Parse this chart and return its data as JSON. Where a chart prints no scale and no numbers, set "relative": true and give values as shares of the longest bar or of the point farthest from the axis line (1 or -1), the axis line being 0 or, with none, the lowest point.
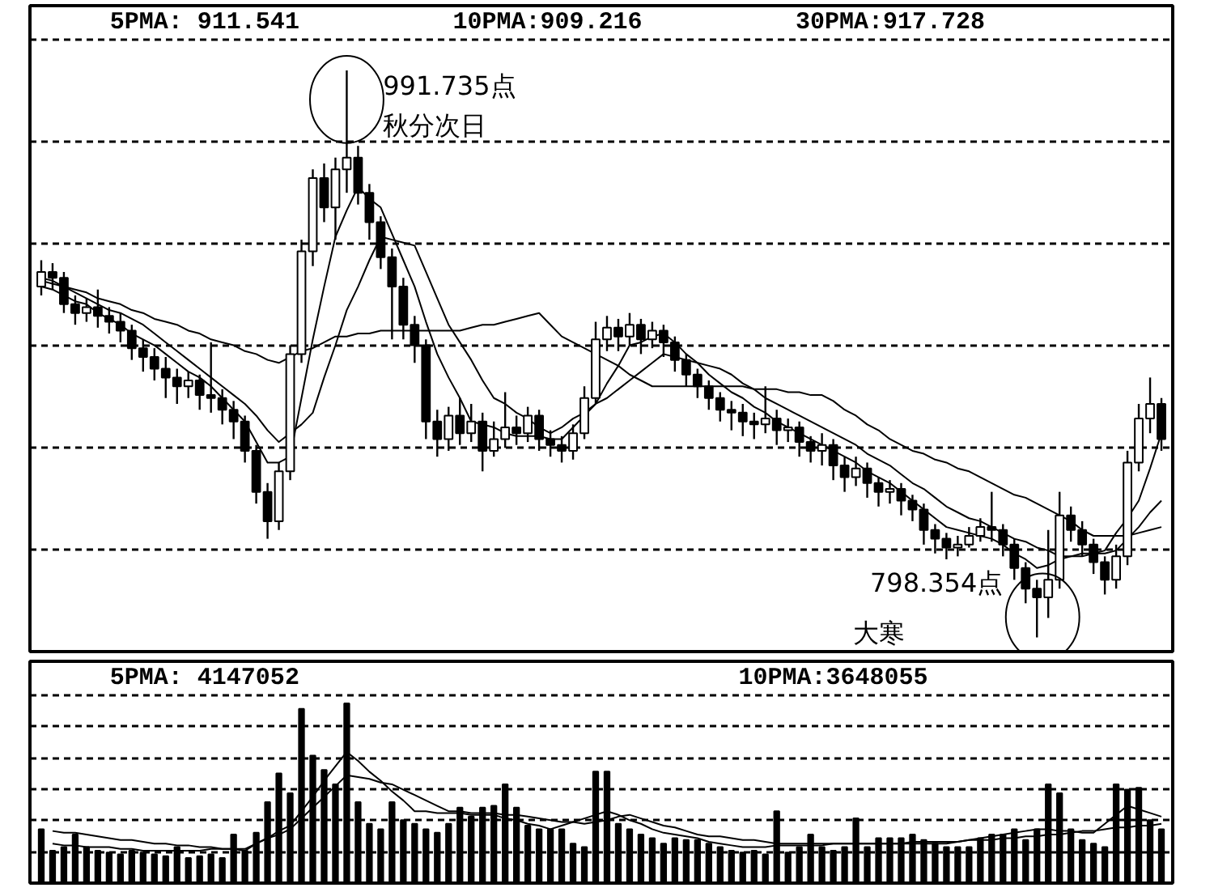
{
  "chart_data": [
    {
      "type": "candlestick",
      "color": "#000000",
      "grid": "y",
      "categories": [
        null,
        null,
        null,
        null,
        null,
        null,
        null,
        null,
        null,
        null,
        null,
        null,
        null,
        null,
        null,
        null,
        null,
        null,
        null,
        null,
        null,
        null,
        null,
        null,
        null,
        null,
        null,
        null,
        null,
        null,
        null,
        null,
        null,
        null,
        null,
        null,
        null,
        null,
        null,
        null,
        null,
        null,
        null,
        null,
        null,
        null,
        null,
        null,
        null,
        null,
        null,
        null,
        null,
        null,
        null,
        null,
        null,
        null,
        null,
        null,
        null,
        null,
        null,
        null,
        null,
        null,
        null,
        null,
        null,
        null,
        null,
        null,
        null,
        null,
        null,
        null,
        null,
        null,
        null,
        null,
        null,
        null,
        null,
        null,
        null,
        null,
        null,
        null,
        null,
        null,
        null,
        null,
        null,
        null,
        null,
        null,
        null,
        null,
        null,
        null
      ],
      "ohlc": [
        [
          918,
          927,
          915,
          923
        ],
        [
          923,
          926,
          917,
          921
        ],
        [
          921,
          923,
          909,
          912
        ],
        [
          912,
          915,
          905,
          909
        ],
        [
          909,
          914,
          906,
          911
        ],
        [
          911,
          917,
          904,
          908
        ],
        [
          908,
          911,
          902,
          906
        ],
        [
          906,
          909,
          899,
          903
        ],
        [
          903,
          905,
          893,
          897
        ],
        [
          897,
          900,
          889,
          894
        ],
        [
          894,
          897,
          886,
          890
        ],
        [
          890,
          894,
          880,
          887
        ],
        [
          887,
          890,
          878,
          884
        ],
        [
          884,
          889,
          880,
          886
        ],
        [
          886,
          888,
          876,
          881
        ],
        [
          881,
          899,
          875,
          880
        ],
        [
          880,
          883,
          871,
          876
        ],
        [
          876,
          879,
          866,
          872
        ],
        [
          872,
          874,
          858,
          862
        ],
        [
          862,
          864,
          844,
          848
        ],
        [
          848,
          851,
          832,
          838
        ],
        [
          838,
          858,
          835,
          855
        ],
        [
          855,
          898,
          852,
          895
        ],
        [
          895,
          934,
          892,
          930
        ],
        [
          930,
          958,
          925,
          955
        ],
        [
          955,
          960,
          940,
          945
        ],
        [
          945,
          962,
          934,
          958
        ],
        [
          958,
          991.735,
          950,
          962
        ],
        [
          962,
          966,
          946,
          950
        ],
        [
          950,
          953,
          934,
          940
        ],
        [
          940,
          942,
          924,
          928
        ],
        [
          928,
          931,
          900,
          918
        ],
        [
          918,
          921,
          900,
          905
        ],
        [
          905,
          908,
          892,
          898
        ],
        [
          898,
          900,
          866,
          872
        ],
        [
          872,
          876,
          860,
          866
        ],
        [
          866,
          877,
          862,
          874
        ],
        [
          874,
          880,
          864,
          868
        ],
        [
          868,
          878,
          865,
          872
        ],
        [
          872,
          875,
          855,
          862
        ],
        [
          862,
          872,
          860,
          866
        ],
        [
          866,
          882,
          863,
          870
        ],
        [
          870,
          874,
          864,
          868
        ],
        [
          868,
          877,
          865,
          874
        ],
        [
          874,
          876,
          862,
          866
        ],
        [
          866,
          869,
          860,
          864
        ],
        [
          864,
          867,
          858,
          862
        ],
        [
          862,
          871,
          859,
          868
        ],
        [
          868,
          884,
          866,
          880
        ],
        [
          880,
          906,
          878,
          900
        ],
        [
          900,
          908,
          896,
          904
        ],
        [
          904,
          907,
          896,
          901
        ],
        [
          901,
          909,
          898,
          905
        ],
        [
          905,
          907,
          895,
          900
        ],
        [
          900,
          906,
          897,
          903
        ],
        [
          903,
          905,
          894,
          899
        ],
        [
          899,
          901,
          889,
          893
        ],
        [
          893,
          895,
          884,
          888
        ],
        [
          888,
          890,
          880,
          884
        ],
        [
          884,
          886,
          876,
          880
        ],
        [
          880,
          882,
          872,
          876
        ],
        [
          876,
          879,
          869,
          875
        ],
        [
          875,
          878,
          867,
          872
        ],
        [
          872,
          875,
          866,
          871
        ],
        [
          871,
          884,
          868,
          873
        ],
        [
          873,
          876,
          864,
          869
        ],
        [
          869,
          873,
          865,
          870
        ],
        [
          870,
          872,
          860,
          865
        ],
        [
          865,
          867,
          858,
          862
        ],
        [
          862,
          868,
          857,
          864
        ],
        [
          864,
          866,
          852,
          857
        ],
        [
          857,
          860,
          848,
          853
        ],
        [
          853,
          860,
          850,
          856
        ],
        [
          856,
          858,
          846,
          851
        ],
        [
          851,
          853,
          843,
          848
        ],
        [
          848,
          852,
          844,
          849
        ],
        [
          849,
          851,
          840,
          845
        ],
        [
          845,
          847,
          838,
          842
        ],
        [
          842,
          844,
          830,
          835
        ],
        [
          835,
          837,
          827,
          832
        ],
        [
          832,
          834,
          825,
          829
        ],
        [
          829,
          833,
          826,
          830
        ],
        [
          830,
          836,
          829,
          833
        ],
        [
          833,
          839,
          831,
          836
        ],
        [
          836,
          848,
          831,
          835
        ],
        [
          835,
          837,
          826,
          830
        ],
        [
          830,
          832,
          818,
          822
        ],
        [
          822,
          824,
          810,
          815
        ],
        [
          815,
          818,
          798.354,
          812
        ],
        [
          812,
          835,
          805,
          818
        ],
        [
          818,
          848,
          815,
          840
        ],
        [
          840,
          843,
          831,
          835
        ],
        [
          835,
          838,
          826,
          830
        ],
        [
          830,
          832,
          820,
          824
        ],
        [
          824,
          826,
          813,
          818
        ],
        [
          818,
          830,
          815,
          826
        ],
        [
          826,
          862,
          823,
          858
        ],
        [
          858,
          878,
          855,
          873
        ],
        [
          873,
          887,
          868,
          878
        ],
        [
          878,
          880,
          862,
          866
        ]
      ],
      "series": [
        {
          "type": "line",
          "color": "#000000",
          "values": [
            918,
            917,
            915,
            913,
            912,
            909,
            907,
            905,
            902,
            900,
            898,
            895,
            892,
            889,
            887,
            884,
            880,
            876,
            872,
            865,
            858,
            858,
            860,
            880,
            900,
            918,
            935,
            944,
            952,
            948,
            945,
            936,
            927,
            918,
            906,
            895,
            887,
            880,
            872,
            871,
            870,
            868,
            867,
            867,
            867,
            866,
            866,
            870,
            874,
            878,
            885,
            891,
            898,
            899,
            901,
            902,
            899,
            895,
            892,
            888,
            885,
            882,
            880,
            877,
            875,
            872,
            870,
            868,
            866,
            864,
            862,
            860,
            858,
            855,
            853,
            851,
            848,
            845,
            842,
            839,
            836,
            835,
            834,
            833,
            832,
            830,
            827,
            825,
            822,
            823,
            825,
            826,
            827,
            827,
            828,
            834,
            839,
            845,
            856,
            868
          ]
        },
        {
          "type": "line",
          "color": "#000000",
          "values": [
            920,
            919,
            918,
            916,
            914,
            912,
            910,
            909,
            907,
            905,
            902,
            899,
            896,
            893,
            890,
            887,
            884,
            881,
            878,
            874,
            869,
            865,
            868,
            871,
            875,
            887,
            898,
            910,
            918,
            927,
            935,
            934,
            933,
            932,
            923,
            914,
            905,
            899,
            893,
            886,
            880,
            878,
            875,
            873,
            870,
            868,
            870,
            873,
            875,
            878,
            880,
            883,
            886,
            889,
            892,
            895,
            894,
            893,
            892,
            891,
            890,
            888,
            885,
            883,
            880,
            878,
            876,
            874,
            872,
            870,
            868,
            866,
            864,
            861,
            859,
            857,
            854,
            851,
            849,
            846,
            843,
            841,
            839,
            838,
            836,
            834,
            832,
            831,
            829,
            828,
            826,
            826,
            826,
            827,
            827,
            828,
            832,
            836,
            841,
            845
          ]
        },
        {
          "type": "line",
          "color": "#000000",
          "values": [
            921,
            920,
            918,
            917,
            916,
            914,
            913,
            912,
            910,
            909,
            907,
            906,
            905,
            903,
            902,
            900,
            899,
            898,
            896,
            895,
            893,
            892,
            894,
            896,
            897,
            899,
            901,
            901,
            902,
            902,
            903,
            903,
            903,
            903,
            903,
            903,
            903,
            903,
            904,
            905,
            905,
            906,
            907,
            908,
            909,
            905,
            901,
            899,
            897,
            895,
            893,
            891,
            888,
            886,
            884,
            884,
            884,
            884,
            884,
            884,
            884,
            884,
            884,
            883,
            883,
            883,
            882,
            882,
            881,
            881,
            879,
            876,
            874,
            871,
            869,
            866,
            864,
            862,
            861,
            859,
            858,
            856,
            855,
            853,
            851,
            849,
            847,
            846,
            844,
            842,
            840,
            838,
            835,
            833,
            833,
            833,
            833,
            834,
            835,
            836
          ]
        }
      ],
      "annotations": [
        "5PMA: 911.541",
        "10PMA:909.216",
        "30PMA:917.728",
        "991.735点",
        "秋分次日",
        "798.354点",
        "大寒"
      ]
    },
    {
      "type": "bar",
      "relative": true,
      "grid": "y",
      "categories": [
        null,
        null,
        null,
        null,
        null,
        null,
        null,
        null,
        null,
        null,
        null,
        null,
        null,
        null,
        null,
        null,
        null,
        null,
        null,
        null,
        null,
        null,
        null,
        null,
        null,
        null,
        null,
        null,
        null,
        null,
        null,
        null,
        null,
        null,
        null,
        null,
        null,
        null,
        null,
        null,
        null,
        null,
        null,
        null,
        null,
        null,
        null,
        null,
        null,
        null,
        null,
        null,
        null,
        null,
        null,
        null,
        null,
        null,
        null,
        null,
        null,
        null,
        null,
        null,
        null,
        null,
        null,
        null,
        null,
        null,
        null,
        null,
        null,
        null,
        null,
        null,
        null,
        null,
        null,
        null,
        null,
        null,
        null,
        null,
        null,
        null,
        null,
        null,
        null,
        null,
        null,
        null,
        null,
        null,
        null,
        null,
        null,
        null,
        null,
        null
      ],
      "series": [
        {
          "type": "bar",
          "color": "#000000",
          "values": [
            0.3,
            0.18,
            0.2,
            0.27,
            0.2,
            0.18,
            0.17,
            0.16,
            0.18,
            0.17,
            0.16,
            0.15,
            0.2,
            0.14,
            0.15,
            0.16,
            0.14,
            0.27,
            0.18,
            0.28,
            0.45,
            0.61,
            0.5,
            0.97,
            0.71,
            0.63,
            0.55,
            1,
            0.45,
            0.33,
            0.3,
            0.45,
            0.35,
            0.33,
            0.3,
            0.28,
            0.33,
            0.42,
            0.37,
            0.42,
            0.43,
            0.55,
            0.42,
            0.32,
            0.3,
            0.3,
            0.3,
            0.22,
            0.2,
            0.62,
            0.62,
            0.33,
            0.3,
            0.27,
            0.25,
            0.22,
            0.25,
            0.24,
            0.24,
            0.22,
            0.2,
            0.18,
            0.17,
            0.18,
            0.16,
            0.4,
            0.17,
            0.2,
            0.27,
            0.2,
            0.18,
            0.2,
            0.36,
            0.2,
            0.25,
            0.25,
            0.25,
            0.27,
            0.24,
            0.22,
            0.2,
            0.2,
            0.2,
            0.25,
            0.27,
            0.27,
            0.3,
            0.24,
            0.3,
            0.55,
            0.5,
            0.3,
            0.24,
            0.22,
            0.2,
            0.55,
            0.52,
            0.53,
            0.35,
            0.3
          ]
        },
        {
          "type": "line",
          "color": "#000000",
          "values": [
            null,
            0.29,
            0.28,
            0.28,
            0.27,
            0.26,
            0.25,
            0.24,
            0.24,
            0.23,
            0.22,
            0.22,
            0.21,
            0.21,
            0.2,
            0.2,
            0.19,
            0.19,
            0.18,
            0.22,
            0.25,
            0.29,
            0.32,
            0.4,
            0.48,
            0.57,
            0.65,
            0.73,
            0.68,
            0.62,
            0.57,
            0.51,
            0.46,
            0.4,
            0.4,
            0.39,
            0.39,
            0.39,
            0.38,
            0.38,
            0.38,
            0.36,
            0.35,
            0.33,
            0.32,
            0.3,
            0.32,
            0.34,
            0.36,
            0.38,
            0.4,
            0.38,
            0.35,
            0.33,
            0.3,
            0.28,
            0.27,
            0.26,
            0.25,
            0.23,
            0.22,
            0.21,
            0.2,
            0.2,
            0.2,
            0.21,
            0.21,
            0.21,
            0.21,
            0.21,
            0.22,
            0.22,
            0.22,
            0.22,
            0.22,
            0.22,
            0.22,
            0.22,
            0.22,
            0.22,
            0.22,
            0.23,
            0.24,
            0.25,
            0.26,
            0.27,
            0.28,
            0.29,
            0.3,
            0.3,
            0.29,
            0.29,
            0.28,
            0.28,
            0.33,
            0.38,
            0.43,
            0.41,
            0.39,
            0.37
          ]
        },
        {
          "type": "line",
          "color": "#000000",
          "values": [
            null,
            0.22,
            0.21,
            0.21,
            0.2,
            0.2,
            0.2,
            0.19,
            0.19,
            0.18,
            0.18,
            0.18,
            0.18,
            0.18,
            0.18,
            0.19,
            0.19,
            0.19,
            0.19,
            0.22,
            0.25,
            0.27,
            0.3,
            0.36,
            0.42,
            0.48,
            0.54,
            0.6,
            0.59,
            0.58,
            0.56,
            0.55,
            0.52,
            0.49,
            0.46,
            0.43,
            0.4,
            0.4,
            0.39,
            0.39,
            0.39,
            0.38,
            0.38,
            0.37,
            0.36,
            0.35,
            0.34,
            0.34,
            0.33,
            0.34,
            0.35,
            0.37,
            0.38,
            0.36,
            0.34,
            0.32,
            0.31,
            0.29,
            0.27,
            0.26,
            0.26,
            0.25,
            0.24,
            0.24,
            0.23,
            0.22,
            0.22,
            0.22,
            0.22,
            0.22,
            0.22,
            0.22,
            0.22,
            0.22,
            0.22,
            0.22,
            0.22,
            0.23,
            0.23,
            0.23,
            0.23,
            0.23,
            0.24,
            0.24,
            0.24,
            0.25,
            0.25,
            0.26,
            0.26,
            0.27,
            0.27,
            0.28,
            0.29,
            0.29,
            0.3,
            0.31,
            0.31,
            0.32,
            0.32,
            0.33
          ]
        }
      ],
      "annotations": [
        "5PMA: 4147052",
        "10PMA:3648055"
      ]
    }
  ]
}
